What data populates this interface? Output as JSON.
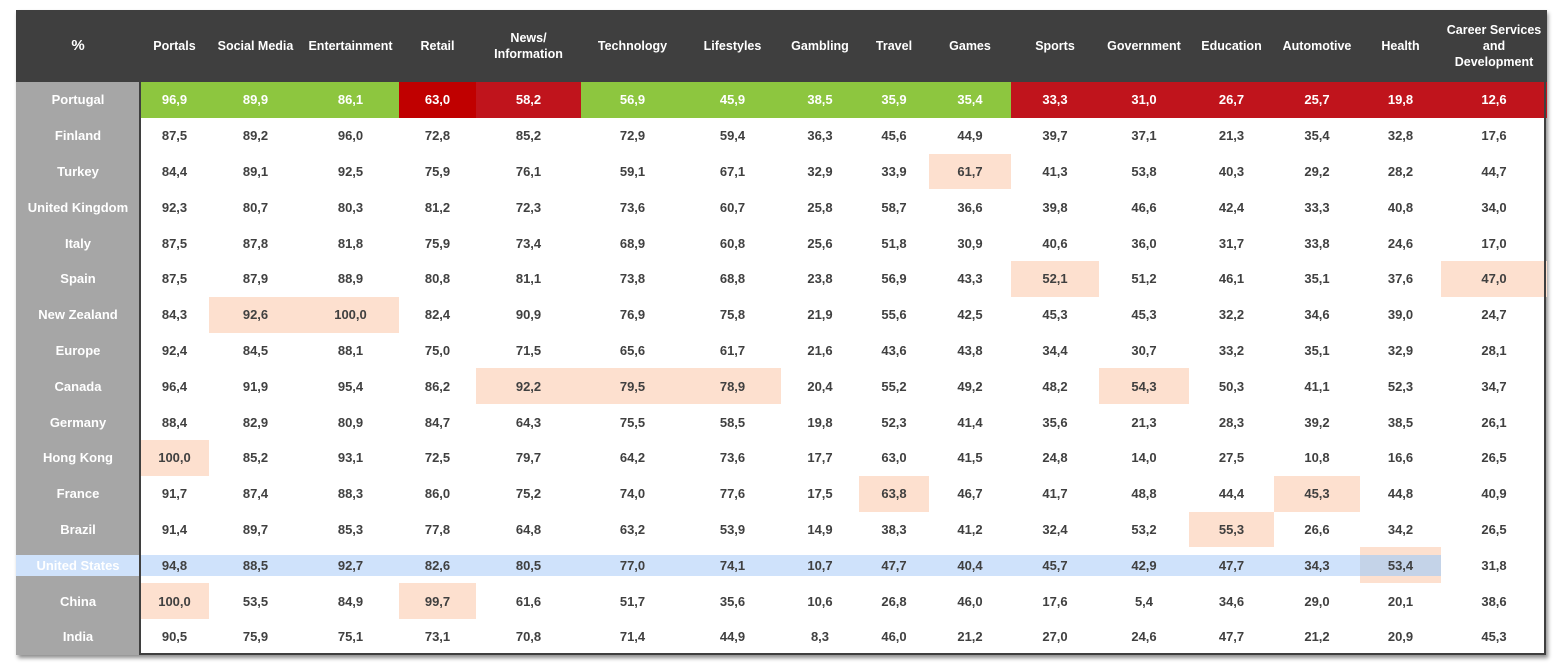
{
  "chart_data": {
    "type": "table",
    "corner_label": "%",
    "columns": [
      "Portals",
      "Social Media",
      "Entertainment",
      "Retail",
      "News/ Information",
      "Technology",
      "Lifestyles",
      "Gambling",
      "Travel",
      "Games",
      "Sports",
      "Government",
      "Education",
      "Automotive",
      "Health",
      "Career Services and Development"
    ],
    "rows": [
      {
        "label": "Portugal",
        "values": [
          "96,9",
          "89,9",
          "86,1",
          "63,0",
          "58,2",
          "56,9",
          "45,9",
          "38,5",
          "35,9",
          "35,4",
          "33,3",
          "31,0",
          "26,7",
          "25,7",
          "19,8",
          "12,6"
        ]
      },
      {
        "label": "Finland",
        "values": [
          "87,5",
          "89,2",
          "96,0",
          "72,8",
          "85,2",
          "72,9",
          "59,4",
          "36,3",
          "45,6",
          "44,9",
          "39,7",
          "37,1",
          "21,3",
          "35,4",
          "32,8",
          "17,6"
        ]
      },
      {
        "label": "Turkey",
        "values": [
          "84,4",
          "89,1",
          "92,5",
          "75,9",
          "76,1",
          "59,1",
          "67,1",
          "32,9",
          "33,9",
          "61,7",
          "41,3",
          "53,8",
          "40,3",
          "29,2",
          "28,2",
          "44,7"
        ]
      },
      {
        "label": "United Kingdom",
        "values": [
          "92,3",
          "80,7",
          "80,3",
          "81,2",
          "72,3",
          "73,6",
          "60,7",
          "25,8",
          "58,7",
          "36,6",
          "39,8",
          "46,6",
          "42,4",
          "33,3",
          "40,8",
          "34,0"
        ]
      },
      {
        "label": "Italy",
        "values": [
          "87,5",
          "87,8",
          "81,8",
          "75,9",
          "73,4",
          "68,9",
          "60,8",
          "25,6",
          "51,8",
          "30,9",
          "40,6",
          "36,0",
          "31,7",
          "33,8",
          "24,6",
          "17,0"
        ]
      },
      {
        "label": "Spain",
        "values": [
          "87,5",
          "87,9",
          "88,9",
          "80,8",
          "81,1",
          "73,8",
          "68,8",
          "23,8",
          "56,9",
          "43,3",
          "52,1",
          "51,2",
          "46,1",
          "35,1",
          "37,6",
          "47,0"
        ]
      },
      {
        "label": "New Zealand",
        "values": [
          "84,3",
          "92,6",
          "100,0",
          "82,4",
          "90,9",
          "76,9",
          "75,8",
          "21,9",
          "55,6",
          "42,5",
          "45,3",
          "45,3",
          "32,2",
          "34,6",
          "39,0",
          "24,7"
        ]
      },
      {
        "label": "Europe",
        "values": [
          "92,4",
          "84,5",
          "88,1",
          "75,0",
          "71,5",
          "65,6",
          "61,7",
          "21,6",
          "43,6",
          "43,8",
          "34,4",
          "30,7",
          "33,2",
          "35,1",
          "32,9",
          "28,1"
        ]
      },
      {
        "label": "Canada",
        "values": [
          "96,4",
          "91,9",
          "95,4",
          "86,2",
          "92,2",
          "79,5",
          "78,9",
          "20,4",
          "55,2",
          "49,2",
          "48,2",
          "54,3",
          "50,3",
          "41,1",
          "52,3",
          "34,7"
        ]
      },
      {
        "label": "Germany",
        "values": [
          "88,4",
          "82,9",
          "80,9",
          "84,7",
          "64,3",
          "75,5",
          "58,5",
          "19,8",
          "52,3",
          "41,4",
          "35,6",
          "21,3",
          "28,3",
          "39,2",
          "38,5",
          "26,1"
        ]
      },
      {
        "label": "Hong Kong",
        "values": [
          "100,0",
          "85,2",
          "93,1",
          "72,5",
          "79,7",
          "64,2",
          "73,6",
          "17,7",
          "63,0",
          "41,5",
          "24,8",
          "14,0",
          "27,5",
          "10,8",
          "16,6",
          "26,5"
        ]
      },
      {
        "label": "France",
        "values": [
          "91,7",
          "87,4",
          "88,3",
          "86,0",
          "75,2",
          "74,0",
          "77,6",
          "17,5",
          "63,8",
          "46,7",
          "41,7",
          "48,8",
          "44,4",
          "45,3",
          "44,8",
          "40,9"
        ]
      },
      {
        "label": "Brazil",
        "values": [
          "91,4",
          "89,7",
          "85,3",
          "77,8",
          "64,8",
          "63,2",
          "53,9",
          "14,9",
          "38,3",
          "41,2",
          "32,4",
          "53,2",
          "55,3",
          "26,6",
          "34,2",
          "26,5"
        ]
      },
      {
        "label": "United States",
        "values": [
          "94,8",
          "88,5",
          "92,7",
          "82,6",
          "80,5",
          "77,0",
          "74,1",
          "10,7",
          "47,7",
          "40,4",
          "45,7",
          "42,9",
          "47,7",
          "34,3",
          "53,4",
          "31,8"
        ]
      },
      {
        "label": "China",
        "values": [
          "100,0",
          "53,5",
          "84,9",
          "99,7",
          "61,6",
          "51,7",
          "35,6",
          "10,6",
          "26,8",
          "46,0",
          "17,6",
          "5,4",
          "34,6",
          "29,0",
          "20,1",
          "38,6"
        ]
      },
      {
        "label": "India",
        "values": [
          "90,5",
          "75,9",
          "75,1",
          "73,1",
          "70,8",
          "71,4",
          "44,9",
          "8,3",
          "46,0",
          "21,2",
          "27,0",
          "24,6",
          "47,7",
          "21,2",
          "20,9",
          "45,3"
        ]
      }
    ],
    "portugal_colors": [
      "#8dc63f",
      "#8dc63f",
      "#8dc63f",
      "#c00000",
      "#c0141c",
      "#8dc63f",
      "#8dc63f",
      "#8dc63f",
      "#8dc63f",
      "#8dc63f",
      "#c0141c",
      "#c0141c",
      "#c0141c",
      "#c0141c",
      "#c0141c",
      "#c0141c"
    ],
    "column_max_highlights": [
      {
        "row": "Hong Kong",
        "column": "Portals"
      },
      {
        "row": "China",
        "column": "Portals"
      },
      {
        "row": "New Zealand",
        "column": "Social Media"
      },
      {
        "row": "New Zealand",
        "column": "Entertainment"
      },
      {
        "row": "China",
        "column": "Retail"
      },
      {
        "row": "Canada",
        "column": "News/ Information"
      },
      {
        "row": "Canada",
        "column": "Technology"
      },
      {
        "row": "Canada",
        "column": "Lifestyles"
      },
      {
        "row": "France",
        "column": "Travel"
      },
      {
        "row": "Turkey",
        "column": "Games"
      },
      {
        "row": "Spain",
        "column": "Sports"
      },
      {
        "row": "Canada",
        "column": "Government"
      },
      {
        "row": "Brazil",
        "column": "Education"
      },
      {
        "row": "France",
        "column": "Automotive"
      },
      {
        "row": "United States",
        "column": "Health"
      },
      {
        "row": "Spain",
        "column": "Career Services and Development"
      }
    ],
    "highlighted_row": "United States",
    "colors": {
      "header_bg": "#3f3f3f",
      "row_label_bg": "#a6a6a6",
      "highlight": "#fde0cf",
      "us_row": "#cfe2fb",
      "text": "#404040"
    }
  }
}
